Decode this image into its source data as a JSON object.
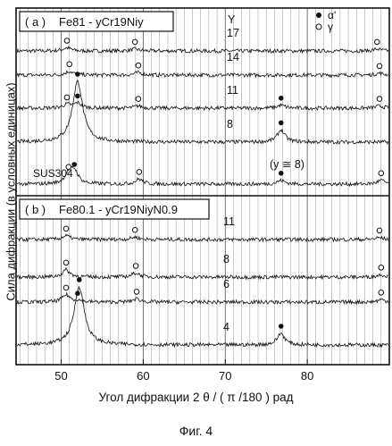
{
  "chart_data": [
    {
      "type": "line",
      "panel_tag": "( a )",
      "panel_formula": "Fe81 - yCr19Niy",
      "y_column_header": "Y",
      "legend": [
        {
          "marker": "filled-circle",
          "label": "α'"
        },
        {
          "marker": "open-circle",
          "label": "γ"
        }
      ],
      "xlim": [
        44.5,
        90
      ],
      "series": [
        {
          "name": "17",
          "peaks": [
            {
              "x": 50.7,
              "type": "γ",
              "h": 0.25
            },
            {
              "x": 59.0,
              "type": "γ",
              "h": 0.15
            },
            {
              "x": 88.5,
              "type": "γ",
              "h": 0.15
            }
          ]
        },
        {
          "name": "14",
          "peaks": [
            {
              "x": 51.0,
              "type": "γ",
              "h": 0.3
            },
            {
              "x": 59.4,
              "type": "γ",
              "h": 0.2
            },
            {
              "x": 88.8,
              "type": "γ",
              "h": 0.15
            }
          ]
        },
        {
          "name": "11",
          "peaks": [
            {
              "x": 50.7,
              "type": "γ",
              "h": 0.25
            },
            {
              "x": 52.0,
              "type": "α'",
              "h": 0.35
            },
            {
              "x": 59.4,
              "type": "γ",
              "h": 0.15
            },
            {
              "x": 76.8,
              "type": "α'",
              "h": 0.2
            },
            {
              "x": 88.8,
              "type": "γ",
              "h": 0.15
            }
          ]
        },
        {
          "name": "8",
          "peaks": [
            {
              "x": 52.0,
              "type": "α'",
              "h": 1.0
            },
            {
              "x": 76.8,
              "type": "α'",
              "h": 0.2
            }
          ]
        },
        {
          "name": "SUS304",
          "annotation": "(y ≅ 8)",
          "peaks": [
            {
              "x": 50.9,
              "type": "γ",
              "h": 0.4
            },
            {
              "x": 51.6,
              "type": "α'",
              "h": 0.5
            },
            {
              "x": 59.5,
              "type": "γ",
              "h": 0.2
            },
            {
              "x": 76.8,
              "type": "α'",
              "h": 0.15
            },
            {
              "x": 89.0,
              "type": "γ",
              "h": 0.15
            }
          ]
        }
      ]
    },
    {
      "type": "line",
      "panel_tag": "( b )",
      "panel_formula": "Fe80.1 - yCr19NiyN0.9",
      "xlim": [
        44.5,
        90
      ],
      "series": [
        {
          "name": "11",
          "peaks": [
            {
              "x": 50.6,
              "type": "γ",
              "h": 0.3
            },
            {
              "x": 59.0,
              "type": "γ",
              "h": 0.2
            },
            {
              "x": 88.8,
              "type": "γ",
              "h": 0.15
            }
          ]
        },
        {
          "name": "8",
          "peaks": [
            {
              "x": 50.6,
              "type": "γ",
              "h": 0.45
            },
            {
              "x": 59.1,
              "type": "γ",
              "h": 0.25
            },
            {
              "x": 89.0,
              "type": "γ",
              "h": 0.15
            }
          ]
        },
        {
          "name": "6",
          "peaks": [
            {
              "x": 50.6,
              "type": "γ",
              "h": 0.45
            },
            {
              "x": 52.0,
              "type": "α'",
              "h": 0.1
            },
            {
              "x": 59.2,
              "type": "γ",
              "h": 0.2
            },
            {
              "x": 89.0,
              "type": "γ",
              "h": 0.15
            }
          ]
        },
        {
          "name": "4",
          "peaks": [
            {
              "x": 52.2,
              "type": "α'",
              "h": 1.0
            },
            {
              "x": 76.8,
              "type": "α'",
              "h": 0.2
            }
          ]
        }
      ]
    }
  ],
  "x_ticks": [
    50,
    60,
    70,
    80
  ],
  "xlabel": "Угол дифракции 2 θ / ( π /180 ) рад",
  "ylabel": "Сила дифракции (в условных единицах)",
  "caption": "Фиг. 4"
}
